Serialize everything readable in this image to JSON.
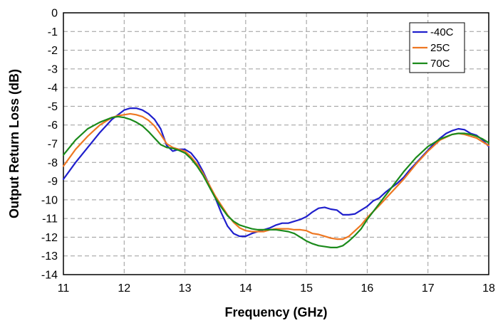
{
  "chart_data": {
    "type": "line",
    "xlabel": "Frequency (GHz)",
    "ylabel": "Output Return Loss (dB)",
    "xlim": [
      11,
      18
    ],
    "ylim": [
      -14,
      0
    ],
    "xticks": [
      11,
      12,
      13,
      14,
      15,
      16,
      17,
      18
    ],
    "yticks": [
      0,
      -1,
      -2,
      -3,
      -4,
      -5,
      -6,
      -7,
      -8,
      -9,
      -10,
      -11,
      -12,
      -13,
      -14
    ],
    "grid": true,
    "legend_position": "top-right",
    "series": [
      {
        "name": "-40C",
        "color": "#1f1fcc",
        "x": [
          11.0,
          11.2,
          11.4,
          11.6,
          11.8,
          12.0,
          12.1,
          12.2,
          12.3,
          12.4,
          12.5,
          12.6,
          12.7,
          12.8,
          12.9,
          13.0,
          13.1,
          13.2,
          13.3,
          13.4,
          13.5,
          13.6,
          13.7,
          13.8,
          13.9,
          14.0,
          14.1,
          14.2,
          14.3,
          14.4,
          14.5,
          14.6,
          14.7,
          14.8,
          14.9,
          15.0,
          15.1,
          15.2,
          15.3,
          15.4,
          15.5,
          15.6,
          15.7,
          15.8,
          15.9,
          16.0,
          16.1,
          16.2,
          16.3,
          16.4,
          16.5,
          16.6,
          16.7,
          16.8,
          16.9,
          17.0,
          17.1,
          17.2,
          17.3,
          17.4,
          17.5,
          17.6,
          17.7,
          17.8,
          17.9,
          18.0
        ],
        "values": [
          -8.9,
          -8.0,
          -7.2,
          -6.4,
          -5.7,
          -5.2,
          -5.1,
          -5.1,
          -5.2,
          -5.4,
          -5.7,
          -6.2,
          -7.1,
          -7.4,
          -7.3,
          -7.3,
          -7.5,
          -7.9,
          -8.5,
          -9.2,
          -9.9,
          -10.7,
          -11.4,
          -11.8,
          -11.95,
          -11.95,
          -11.8,
          -11.7,
          -11.6,
          -11.5,
          -11.35,
          -11.25,
          -11.25,
          -11.15,
          -11.05,
          -10.9,
          -10.65,
          -10.45,
          -10.4,
          -10.5,
          -10.55,
          -10.8,
          -10.8,
          -10.75,
          -10.55,
          -10.35,
          -10.05,
          -9.9,
          -9.6,
          -9.35,
          -9.1,
          -8.8,
          -8.4,
          -8.05,
          -7.7,
          -7.35,
          -7.0,
          -6.7,
          -6.45,
          -6.3,
          -6.2,
          -6.25,
          -6.45,
          -6.55,
          -6.8,
          -7.15
        ]
      },
      {
        "name": "25C",
        "color": "#ee7722",
        "x": [
          11.0,
          11.2,
          11.4,
          11.6,
          11.8,
          11.9,
          12.0,
          12.1,
          12.2,
          12.3,
          12.4,
          12.5,
          12.6,
          12.7,
          12.8,
          12.9,
          13.0,
          13.1,
          13.2,
          13.3,
          13.4,
          13.5,
          13.6,
          13.7,
          13.8,
          13.9,
          14.0,
          14.1,
          14.2,
          14.3,
          14.4,
          14.5,
          14.6,
          14.7,
          14.8,
          14.9,
          15.0,
          15.1,
          15.2,
          15.3,
          15.4,
          15.5,
          15.6,
          15.7,
          15.8,
          15.9,
          16.0,
          16.2,
          16.4,
          16.6,
          16.8,
          17.0,
          17.2,
          17.4,
          17.5,
          17.6,
          17.7,
          17.8,
          17.9,
          18.0
        ],
        "values": [
          -8.2,
          -7.3,
          -6.6,
          -6.0,
          -5.6,
          -5.5,
          -5.45,
          -5.4,
          -5.45,
          -5.55,
          -5.75,
          -6.05,
          -6.5,
          -7.0,
          -7.2,
          -7.3,
          -7.4,
          -7.7,
          -8.1,
          -8.6,
          -9.2,
          -9.8,
          -10.3,
          -10.8,
          -11.2,
          -11.5,
          -11.65,
          -11.7,
          -11.7,
          -11.7,
          -11.6,
          -11.55,
          -11.55,
          -11.55,
          -11.6,
          -11.6,
          -11.65,
          -11.8,
          -11.85,
          -11.95,
          -12.05,
          -12.1,
          -12.1,
          -11.95,
          -11.65,
          -11.35,
          -10.95,
          -10.3,
          -9.6,
          -8.9,
          -8.1,
          -7.4,
          -6.8,
          -6.5,
          -6.45,
          -6.5,
          -6.6,
          -6.7,
          -6.9,
          -7.1
        ]
      },
      {
        "name": "70C",
        "color": "#1b8a1b",
        "x": [
          11.0,
          11.2,
          11.4,
          11.6,
          11.8,
          11.9,
          12.0,
          12.1,
          12.2,
          12.3,
          12.4,
          12.5,
          12.6,
          12.7,
          12.8,
          12.9,
          13.0,
          13.1,
          13.2,
          13.3,
          13.4,
          13.5,
          13.6,
          13.7,
          13.8,
          13.9,
          14.0,
          14.1,
          14.2,
          14.3,
          14.4,
          14.5,
          14.6,
          14.7,
          14.8,
          14.9,
          15.0,
          15.1,
          15.2,
          15.3,
          15.4,
          15.5,
          15.6,
          15.7,
          15.8,
          15.9,
          16.0,
          16.2,
          16.4,
          16.6,
          16.8,
          17.0,
          17.2,
          17.4,
          17.5,
          17.6,
          17.7,
          17.8,
          17.9,
          18.0
        ],
        "values": [
          -7.6,
          -6.8,
          -6.2,
          -5.85,
          -5.6,
          -5.55,
          -5.6,
          -5.7,
          -5.85,
          -6.05,
          -6.35,
          -6.7,
          -7.05,
          -7.2,
          -7.25,
          -7.35,
          -7.5,
          -7.8,
          -8.2,
          -8.7,
          -9.3,
          -9.9,
          -10.4,
          -10.85,
          -11.15,
          -11.35,
          -11.45,
          -11.55,
          -11.6,
          -11.6,
          -11.6,
          -11.6,
          -11.65,
          -11.7,
          -11.8,
          -12.0,
          -12.2,
          -12.35,
          -12.45,
          -12.5,
          -12.55,
          -12.55,
          -12.45,
          -12.2,
          -11.9,
          -11.55,
          -11.05,
          -10.2,
          -9.35,
          -8.5,
          -7.75,
          -7.15,
          -6.75,
          -6.5,
          -6.45,
          -6.45,
          -6.5,
          -6.6,
          -6.75,
          -6.95
        ]
      }
    ]
  }
}
